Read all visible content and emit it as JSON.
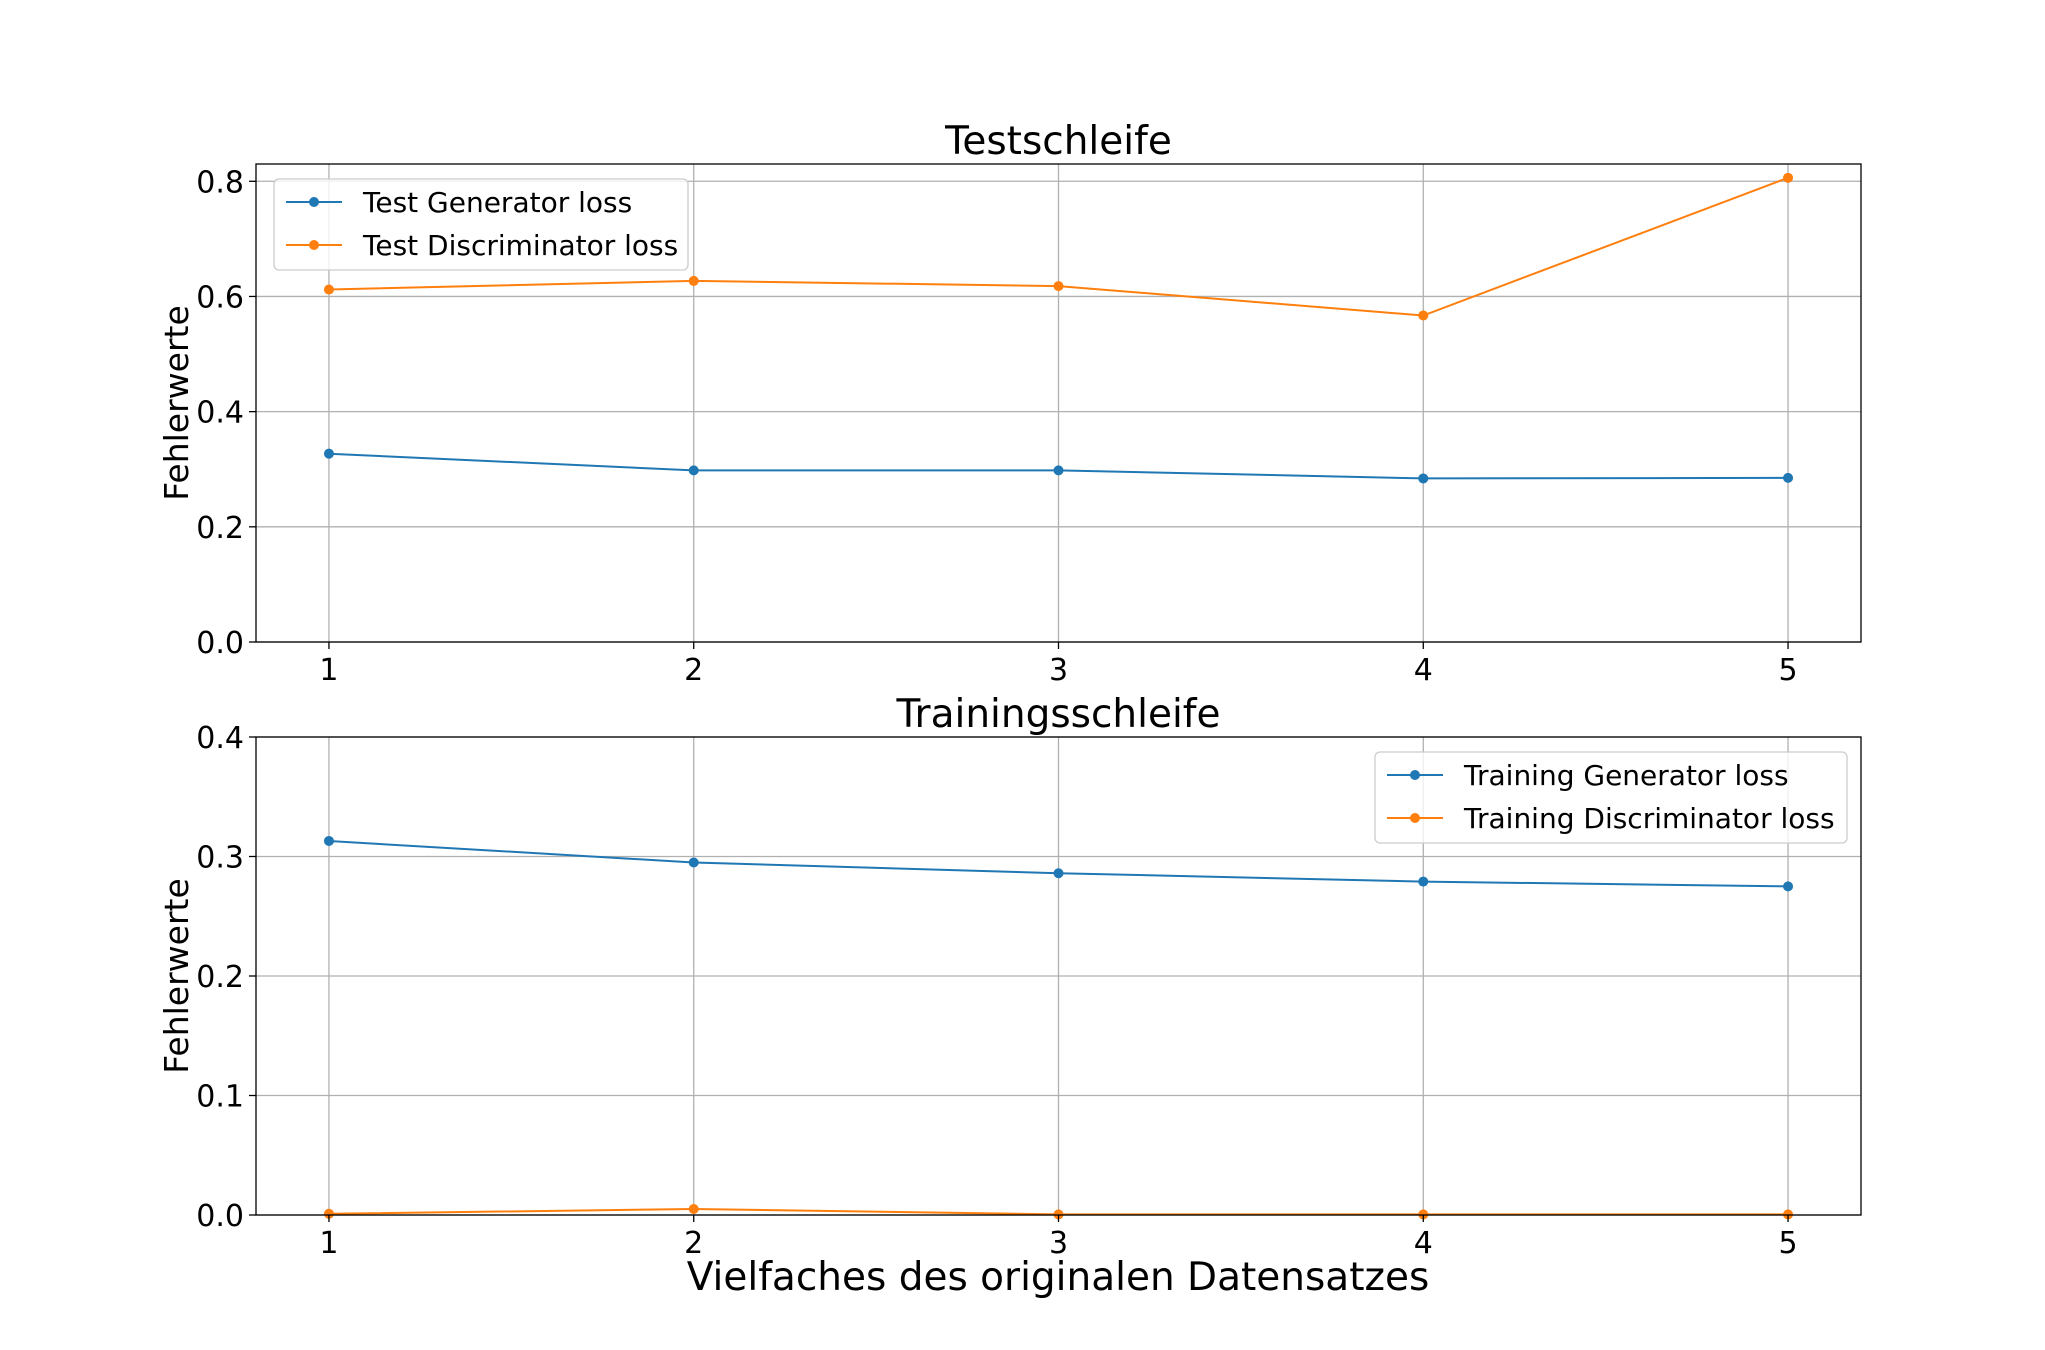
{
  "figure": {
    "xlabel": "Vielfaches des originalen Datensatzes"
  },
  "chart_data": [
    {
      "type": "line",
      "title": "Testschleife",
      "xlabel": "",
      "ylabel": "Fehlerwerte",
      "x": [
        1,
        2,
        3,
        4,
        5
      ],
      "xticks": [
        "1",
        "2",
        "3",
        "4",
        "5"
      ],
      "ylim": [
        0,
        0.83
      ],
      "yticks": [
        "0.0",
        "0.2",
        "0.4",
        "0.6",
        "0.8"
      ],
      "ytick_values": [
        0,
        0.2,
        0.4,
        0.6,
        0.8
      ],
      "grid": true,
      "legend_position": "top-left",
      "series": [
        {
          "name": "Test Generator loss",
          "color": "#1f77b4",
          "values": [
            0.327,
            0.298,
            0.298,
            0.284,
            0.285
          ]
        },
        {
          "name": "Test Discriminator loss",
          "color": "#ff7f0e",
          "values": [
            0.612,
            0.627,
            0.618,
            0.567,
            0.806
          ]
        }
      ]
    },
    {
      "type": "line",
      "title": "Trainingsschleife",
      "xlabel": "Vielfaches des originalen Datensatzes",
      "ylabel": "Fehlerwerte",
      "x": [
        1,
        2,
        3,
        4,
        5
      ],
      "xticks": [
        "1",
        "2",
        "3",
        "4",
        "5"
      ],
      "ylim": [
        0,
        0.4
      ],
      "yticks": [
        "0.0",
        "0.1",
        "0.2",
        "0.3",
        "0.4"
      ],
      "ytick_values": [
        0,
        0.1,
        0.2,
        0.3,
        0.4
      ],
      "grid": true,
      "legend_position": "top-right",
      "series": [
        {
          "name": "Training Generator loss",
          "color": "#1f77b4",
          "values": [
            0.313,
            0.295,
            0.286,
            0.279,
            0.275
          ]
        },
        {
          "name": "Training Discriminator loss",
          "color": "#ff7f0e",
          "values": [
            0.001,
            0.005,
            0.0005,
            0.0005,
            0.0005
          ]
        }
      ]
    }
  ]
}
